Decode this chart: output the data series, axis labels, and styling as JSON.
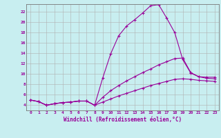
{
  "background_color": "#c8eef0",
  "grid_color": "#b0b0b0",
  "line_color": "#990099",
  "xlabel": "Windchill (Refroidissement éolien,°C)",
  "xlim": [
    -0.5,
    23.5
  ],
  "ylim": [
    3,
    23.5
  ],
  "yticks": [
    4,
    6,
    8,
    10,
    12,
    14,
    16,
    18,
    20,
    22
  ],
  "xticks": [
    0,
    1,
    2,
    3,
    4,
    5,
    6,
    7,
    8,
    9,
    10,
    11,
    12,
    13,
    14,
    15,
    16,
    17,
    18,
    19,
    20,
    21,
    22,
    23
  ],
  "line1_x": [
    0,
    1,
    2,
    3,
    4,
    5,
    6,
    7,
    8,
    9,
    10,
    11,
    12,
    13,
    14,
    15,
    16,
    17,
    18,
    19,
    20,
    21,
    22,
    23
  ],
  "line1_y": [
    5.0,
    4.7,
    4.0,
    4.3,
    4.5,
    4.6,
    4.8,
    4.8,
    4.0,
    9.2,
    13.9,
    17.4,
    19.3,
    20.5,
    21.8,
    23.2,
    23.4,
    20.8,
    18.0,
    12.8,
    10.2,
    9.5,
    9.4,
    9.4
  ],
  "line2_x": [
    0,
    1,
    2,
    3,
    4,
    5,
    6,
    7,
    8,
    9,
    10,
    11,
    12,
    13,
    14,
    15,
    16,
    17,
    18,
    19,
    20,
    21,
    22,
    23
  ],
  "line2_y": [
    5.0,
    4.7,
    4.0,
    4.3,
    4.5,
    4.6,
    4.8,
    4.8,
    4.0,
    5.5,
    6.8,
    7.8,
    8.7,
    9.5,
    10.3,
    11.0,
    11.8,
    12.4,
    13.0,
    13.1,
    10.3,
    9.5,
    9.2,
    9.1
  ],
  "line3_x": [
    0,
    1,
    2,
    3,
    4,
    5,
    6,
    7,
    8,
    9,
    10,
    11,
    12,
    13,
    14,
    15,
    16,
    17,
    18,
    19,
    20,
    21,
    22,
    23
  ],
  "line3_y": [
    5.0,
    4.7,
    4.0,
    4.3,
    4.5,
    4.6,
    4.8,
    4.8,
    4.0,
    4.6,
    5.2,
    5.8,
    6.3,
    6.8,
    7.3,
    7.8,
    8.2,
    8.6,
    9.0,
    9.1,
    9.0,
    8.8,
    8.7,
    8.6
  ]
}
